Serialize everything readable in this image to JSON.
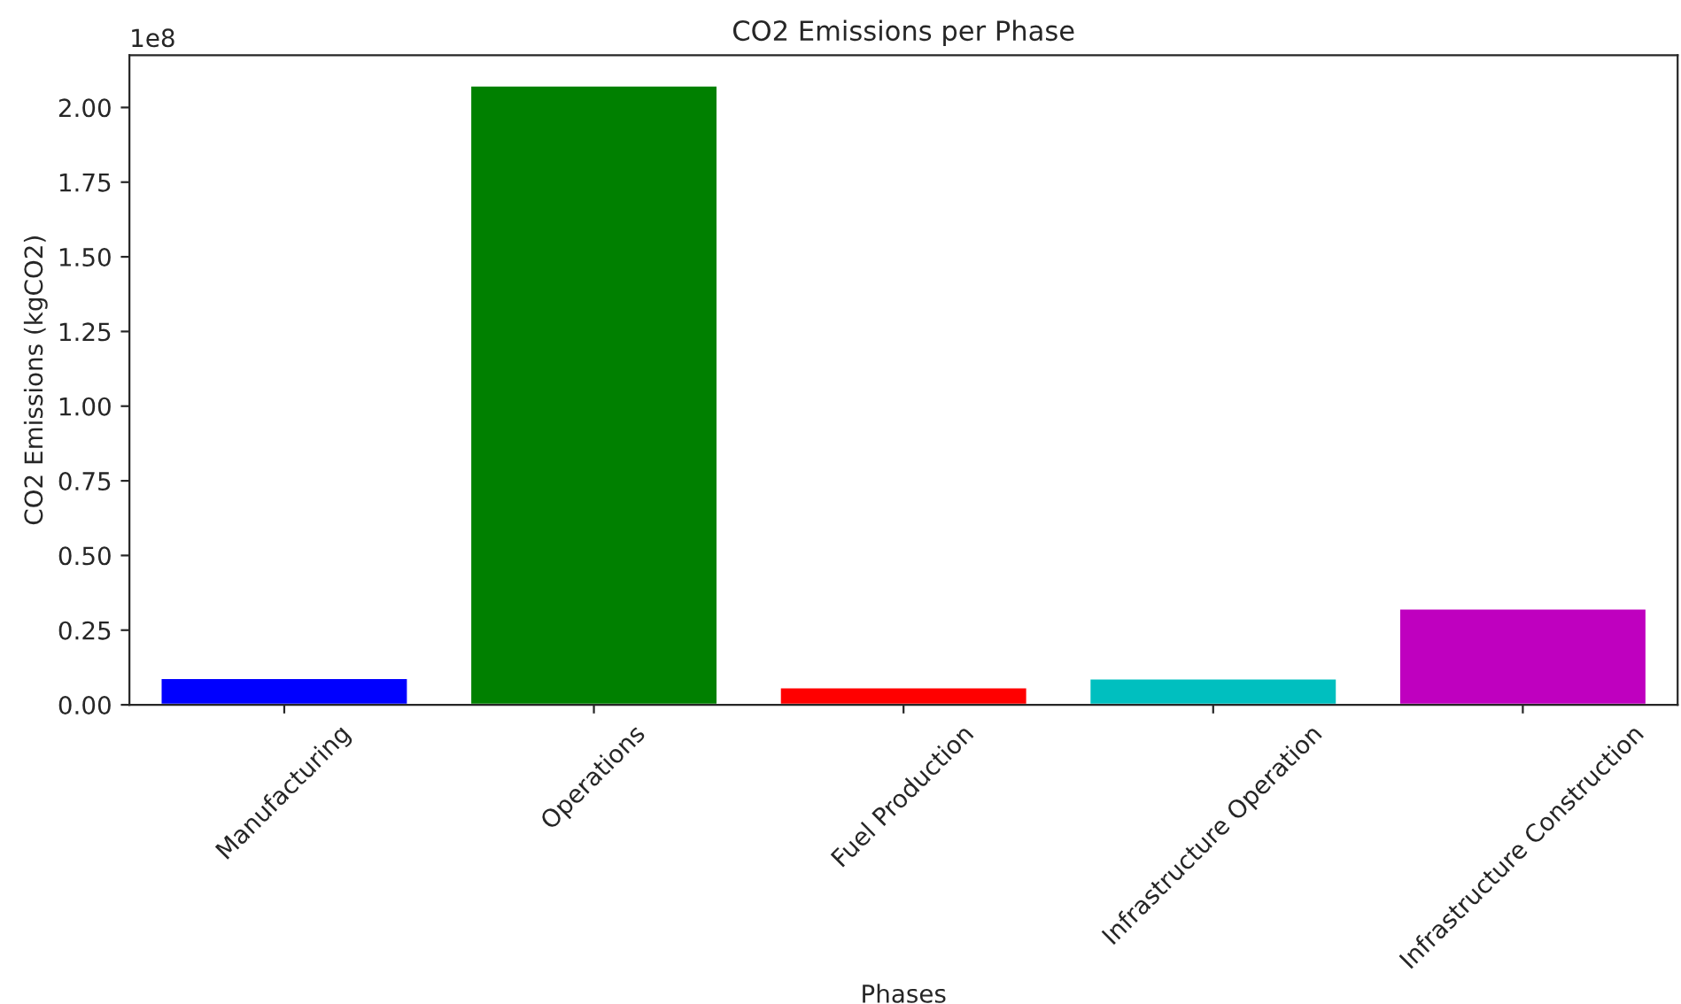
{
  "chart_data": {
    "type": "bar",
    "title": "CO2 Emissions per Phase",
    "xlabel": "Phases",
    "ylabel": "CO2 Emissions (kgCO2)",
    "categories": [
      "Manufacturing",
      "Operations",
      "Fuel Production",
      "Infrastructure Operation",
      "Infrastructure Construction"
    ],
    "values": [
      0.09,
      2.074,
      0.059,
      0.089,
      0.323
    ],
    "colors": [
      "#0000ff",
      "#008000",
      "#ff0000",
      "#00bfbf",
      "#bf00bf"
    ],
    "ylim": [
      0,
      2.175
    ],
    "yticks": [
      {
        "value": 0,
        "label": "0.00"
      },
      0.25,
      {
        "value": 0.5,
        "label": "0.50"
      },
      0.75,
      {
        "value": 1,
        "label": "1.00"
      },
      1.25,
      {
        "value": 1.5,
        "label": "1.50"
      },
      1.75,
      {
        "value": 2,
        "label": "2.00"
      }
    ],
    "annotations": [
      "1e8"
    ],
    "grid": false
  }
}
